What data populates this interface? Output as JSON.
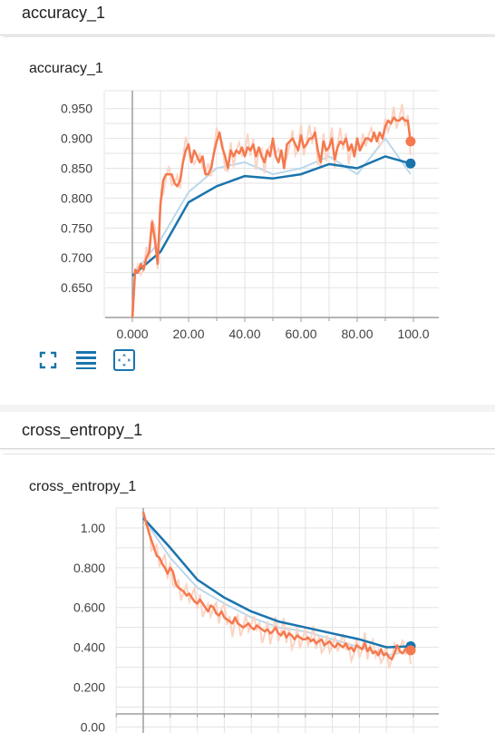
{
  "sections": [
    {
      "header": "accuracy_1",
      "card_title": "accuracy_1"
    },
    {
      "header": "cross_entropy_1",
      "card_title": "cross_entropy_1"
    }
  ],
  "controls": [
    {
      "icon": "fit-domain-icon"
    },
    {
      "icon": "log-scale-icon"
    },
    {
      "icon": "expand-chart-icon"
    }
  ],
  "colors": {
    "train": "#f5794e",
    "train_raw": "#fbd4c4",
    "test": "#1a74ad",
    "test_raw": "#bcd8ec",
    "grid": "#e3e3e3",
    "axis": "#9e9e9e"
  },
  "chart_data": [
    {
      "type": "line",
      "title": "accuracy_1",
      "xlim": [
        -10,
        104
      ],
      "ylim": [
        0.6,
        0.98
      ],
      "x_ticks": [
        "0.000",
        "20.00",
        "40.00",
        "60.00",
        "80.00",
        "100.0"
      ],
      "y_ticks": [
        "0.650",
        "0.700",
        "0.750",
        "0.800",
        "0.850",
        "0.900",
        "0.950"
      ],
      "grid": true,
      "series": [
        {
          "role": "test",
          "x": [
            0,
            10,
            20,
            30,
            40,
            50,
            60,
            70,
            80,
            90,
            99
          ],
          "values": [
            0.67,
            0.71,
            0.793,
            0.82,
            0.837,
            0.833,
            0.84,
            0.857,
            0.85,
            0.87,
            0.858
          ],
          "raw": [
            0.67,
            0.73,
            0.81,
            0.85,
            0.86,
            0.84,
            0.85,
            0.87,
            0.84,
            0.9,
            0.84
          ]
        },
        {
          "role": "train",
          "x": [
            0,
            1,
            2,
            3,
            4,
            5,
            6,
            7,
            8,
            9,
            10,
            11,
            12,
            13,
            14,
            15,
            16,
            17,
            18,
            19,
            20,
            21,
            22,
            23,
            24,
            25,
            26,
            27,
            28,
            29,
            30,
            31,
            32,
            33,
            34,
            35,
            36,
            37,
            38,
            39,
            40,
            41,
            42,
            43,
            44,
            45,
            46,
            47,
            48,
            49,
            50,
            51,
            52,
            53,
            54,
            55,
            56,
            57,
            58,
            59,
            60,
            61,
            62,
            63,
            64,
            65,
            66,
            67,
            68,
            69,
            70,
            71,
            72,
            73,
            74,
            75,
            76,
            77,
            78,
            79,
            80,
            81,
            82,
            83,
            84,
            85,
            86,
            87,
            88,
            89,
            90,
            91,
            92,
            93,
            94,
            95,
            96,
            97,
            98,
            99
          ],
          "values": [
            0.6,
            0.68,
            0.675,
            0.69,
            0.68,
            0.7,
            0.71,
            0.76,
            0.73,
            0.69,
            0.79,
            0.83,
            0.84,
            0.84,
            0.84,
            0.825,
            0.82,
            0.83,
            0.86,
            0.88,
            0.89,
            0.86,
            0.88,
            0.87,
            0.86,
            0.87,
            0.84,
            0.84,
            0.85,
            0.875,
            0.895,
            0.91,
            0.885,
            0.87,
            0.85,
            0.88,
            0.87,
            0.88,
            0.875,
            0.885,
            0.87,
            0.885,
            0.88,
            0.89,
            0.87,
            0.885,
            0.87,
            0.86,
            0.88,
            0.87,
            0.9,
            0.87,
            0.86,
            0.88,
            0.85,
            0.89,
            0.895,
            0.9,
            0.89,
            0.88,
            0.905,
            0.885,
            0.89,
            0.9,
            0.9,
            0.91,
            0.88,
            0.86,
            0.895,
            0.88,
            0.885,
            0.9,
            0.865,
            0.885,
            0.895,
            0.89,
            0.9,
            0.88,
            0.89,
            0.87,
            0.9,
            0.88,
            0.89,
            0.9,
            0.9,
            0.895,
            0.91,
            0.895,
            0.91,
            0.9,
            0.92,
            0.93,
            0.925,
            0.935,
            0.93,
            0.93,
            0.935,
            0.93,
            0.93,
            0.895
          ]
        }
      ]
    },
    {
      "type": "line",
      "title": "cross_entropy_1",
      "xlim": [
        -10,
        104
      ],
      "ylim": [
        -0.03,
        1.1
      ],
      "x_ticks": [],
      "y_ticks": [
        "0.00",
        "0.200",
        "0.400",
        "0.600",
        "0.800",
        "1.00"
      ],
      "grid": true,
      "series": [
        {
          "role": "test",
          "x": [
            0,
            10,
            20,
            30,
            40,
            50,
            60,
            70,
            80,
            90,
            99
          ],
          "values": [
            1.05,
            0.9,
            0.74,
            0.65,
            0.58,
            0.53,
            0.5,
            0.47,
            0.44,
            0.4,
            0.405
          ],
          "raw": [
            1.05,
            0.85,
            0.7,
            0.62,
            0.55,
            0.5,
            0.48,
            0.44,
            0.4,
            0.36,
            0.38
          ]
        },
        {
          "role": "train",
          "x": [
            0,
            1,
            2,
            3,
            4,
            5,
            6,
            7,
            8,
            9,
            10,
            11,
            12,
            13,
            14,
            15,
            16,
            17,
            18,
            19,
            20,
            21,
            22,
            23,
            24,
            25,
            26,
            27,
            28,
            29,
            30,
            31,
            32,
            33,
            34,
            35,
            36,
            37,
            38,
            39,
            40,
            41,
            42,
            43,
            44,
            45,
            46,
            47,
            48,
            49,
            50,
            51,
            52,
            53,
            54,
            55,
            56,
            57,
            58,
            59,
            60,
            61,
            62,
            63,
            64,
            65,
            66,
            67,
            68,
            69,
            70,
            71,
            72,
            73,
            74,
            75,
            76,
            77,
            78,
            79,
            80,
            81,
            82,
            83,
            84,
            85,
            86,
            87,
            88,
            89,
            90,
            91,
            92,
            93,
            94,
            95,
            96,
            97,
            98,
            99
          ],
          "values": [
            1.08,
            1.03,
            0.98,
            0.94,
            0.9,
            0.86,
            0.85,
            0.82,
            0.8,
            0.77,
            0.8,
            0.78,
            0.72,
            0.7,
            0.69,
            0.68,
            0.66,
            0.67,
            0.65,
            0.63,
            0.62,
            0.64,
            0.62,
            0.6,
            0.58,
            0.61,
            0.6,
            0.57,
            0.56,
            0.58,
            0.55,
            0.54,
            0.53,
            0.52,
            0.55,
            0.52,
            0.51,
            0.5,
            0.51,
            0.52,
            0.5,
            0.49,
            0.51,
            0.5,
            0.49,
            0.48,
            0.49,
            0.47,
            0.48,
            0.5,
            0.47,
            0.46,
            0.48,
            0.45,
            0.47,
            0.46,
            0.44,
            0.46,
            0.45,
            0.44,
            0.44,
            0.45,
            0.43,
            0.44,
            0.42,
            0.43,
            0.44,
            0.41,
            0.42,
            0.43,
            0.41,
            0.4,
            0.42,
            0.41,
            0.4,
            0.42,
            0.39,
            0.4,
            0.38,
            0.41,
            0.4,
            0.39,
            0.42,
            0.38,
            0.4,
            0.37,
            0.38,
            0.36,
            0.39,
            0.36,
            0.37,
            0.35,
            0.34,
            0.37,
            0.41,
            0.38,
            0.37,
            0.39,
            0.4,
            0.385
          ]
        }
      ]
    }
  ]
}
